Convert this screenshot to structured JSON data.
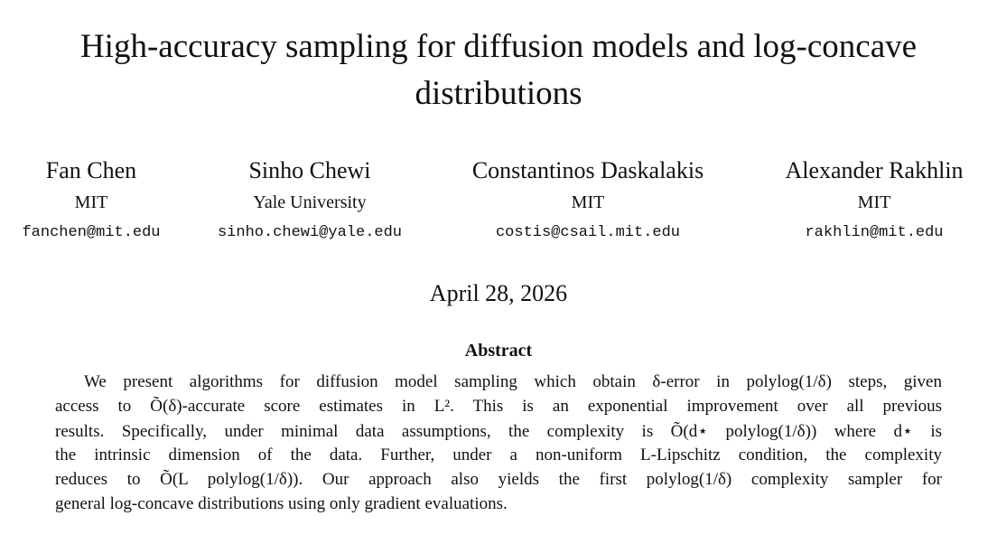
{
  "header": {
    "title": [
      "High-accuracy sampling for diffusion models and log-concave",
      "distributions"
    ]
  },
  "authors": [
    {
      "name": "Fan Chen",
      "affiliation": "MIT",
      "email": "fanchen@mit.edu"
    },
    {
      "name": "Sinho Chewi",
      "affiliation": "Yale University",
      "email": "sinho.chewi@yale.edu"
    },
    {
      "name": "Constantinos Daskalakis",
      "affiliation": "MIT",
      "email": "costis@csail.mit.edu"
    },
    {
      "name": "Alexander Rakhlin",
      "affiliation": "MIT",
      "email": "rakhlin@mit.edu"
    }
  ],
  "date": "April 28, 2026",
  "abstract": {
    "heading": "Abstract",
    "lines": [
      "We present algorithms for diffusion model sampling which obtain δ-error in polylog(1/δ) steps, given",
      "access to Õ(δ)-accurate score estimates in L². This is an exponential improvement over all previous",
      "results. Specifically, under minimal data assumptions, the complexity is Õ(d⋆ polylog(1/δ)) where d⋆ is",
      "the intrinsic dimension of the data. Further, under a non-uniform L-Lipschitz condition, the complexity",
      "reduces to Õ(L polylog(1/δ)). Our approach also yields the first polylog(1/δ) complexity sampler for",
      "general log-concave distributions using only gradient evaluations."
    ]
  }
}
